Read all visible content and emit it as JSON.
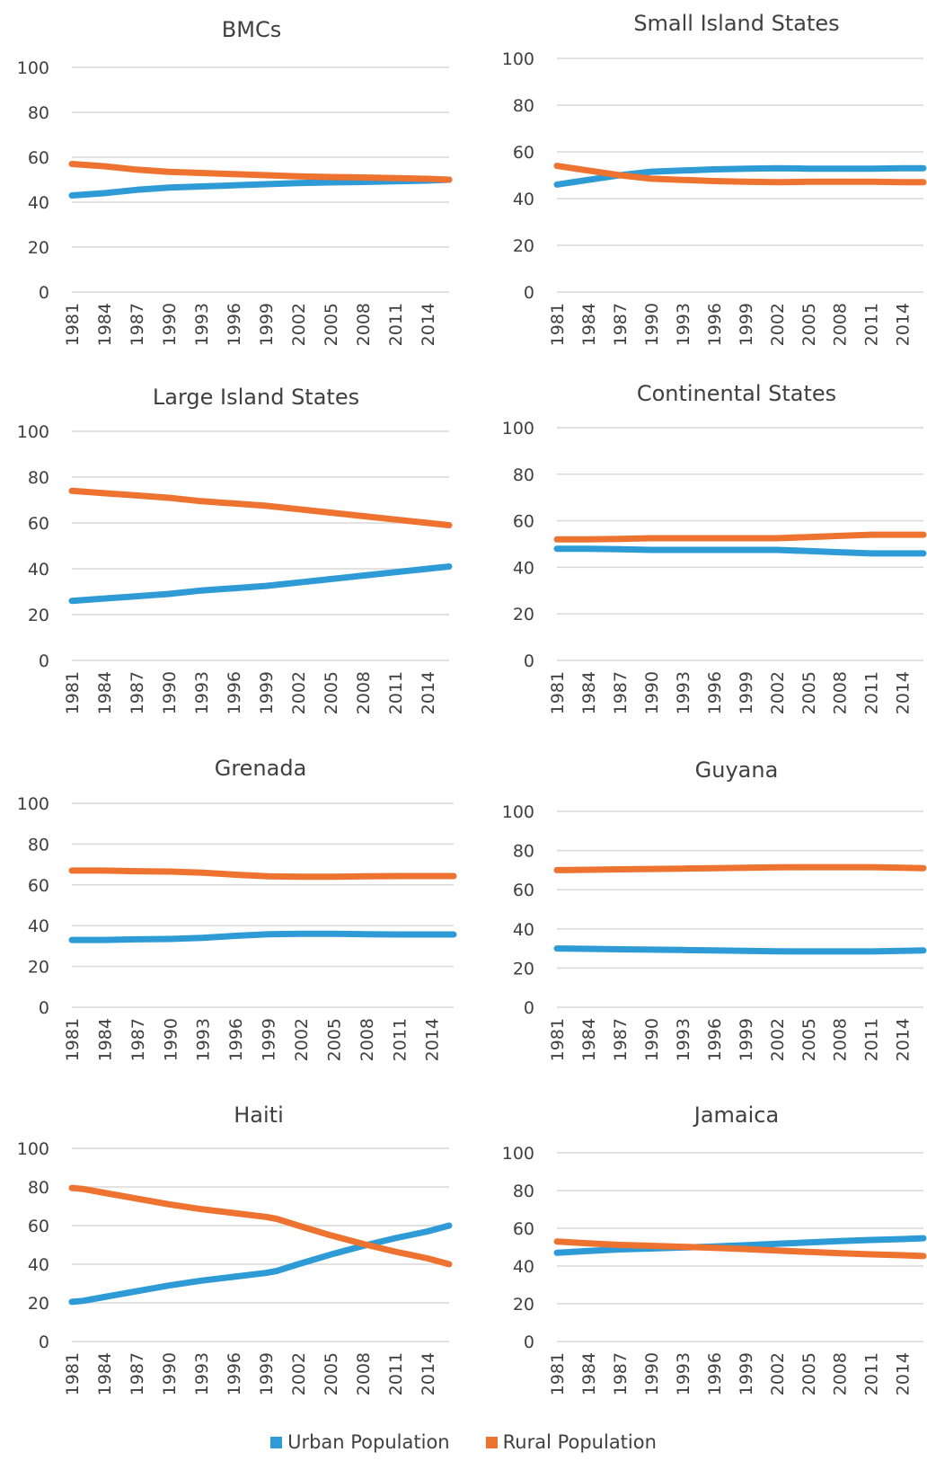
{
  "colors": {
    "urban": "#2e9bd6",
    "rural": "#ee7230",
    "grid": "#d9d9d9",
    "text": "#404040"
  },
  "legend": {
    "urban": "Urban Population",
    "rural": "Rural Population"
  },
  "chart_data": [
    {
      "type": "line",
      "title": "BMCs",
      "x": [
        1981,
        1984,
        1987,
        1990,
        1993,
        1996,
        1999,
        2002,
        2005,
        2008,
        2011,
        2014
      ],
      "x_end": 2016,
      "ylim": [
        0,
        100
      ],
      "yticks": [
        0,
        20,
        40,
        60,
        80,
        100
      ],
      "grid": true,
      "legend": "bottom",
      "series": [
        {
          "name": "Urban Population",
          "x": [
            1981,
            1984,
            1987,
            1990,
            1993,
            1996,
            1999,
            2002,
            2005,
            2008,
            2011,
            2014,
            2016
          ],
          "values": [
            43,
            44,
            45.5,
            46.5,
            47,
            47.5,
            48,
            48.5,
            48.8,
            49,
            49.3,
            49.6,
            50
          ]
        },
        {
          "name": "Rural Population",
          "x": [
            1981,
            1984,
            1987,
            1990,
            1993,
            1996,
            1999,
            2002,
            2005,
            2008,
            2011,
            2014,
            2016
          ],
          "values": [
            57,
            56,
            54.5,
            53.5,
            53,
            52.5,
            52,
            51.5,
            51.2,
            51,
            50.7,
            50.4,
            50
          ]
        }
      ]
    },
    {
      "type": "line",
      "title": "Small Island States",
      "x": [
        1981,
        1984,
        1987,
        1990,
        1993,
        1996,
        1999,
        2002,
        2005,
        2008,
        2011,
        2014
      ],
      "x_end": 2016,
      "ylim": [
        0,
        100
      ],
      "yticks": [
        0,
        20,
        40,
        60,
        80,
        100
      ],
      "grid": true,
      "legend": "bottom",
      "series": [
        {
          "name": "Urban Population",
          "x": [
            1981,
            1984,
            1987,
            1990,
            1993,
            1996,
            1999,
            2002,
            2005,
            2008,
            2011,
            2014,
            2016
          ],
          "values": [
            46,
            48,
            50,
            51.5,
            52,
            52.5,
            52.8,
            53,
            52.8,
            52.8,
            52.8,
            53,
            53
          ]
        },
        {
          "name": "Rural Population",
          "x": [
            1981,
            1984,
            1987,
            1990,
            1993,
            1996,
            1999,
            2002,
            2005,
            2008,
            2011,
            2014,
            2016
          ],
          "values": [
            54,
            52,
            50,
            48.5,
            48,
            47.5,
            47.2,
            47,
            47.2,
            47.2,
            47.2,
            47,
            47
          ]
        }
      ]
    },
    {
      "type": "line",
      "title": "Large Island States",
      "x": [
        1981,
        1984,
        1987,
        1990,
        1993,
        1996,
        1999,
        2002,
        2005,
        2008,
        2011,
        2014
      ],
      "x_end": 2016,
      "ylim": [
        0,
        100
      ],
      "yticks": [
        0,
        20,
        40,
        60,
        80,
        100
      ],
      "grid": true,
      "legend": "bottom",
      "series": [
        {
          "name": "Urban Population",
          "x": [
            1981,
            1984,
            1987,
            1990,
            1993,
            1996,
            1999,
            2002,
            2005,
            2008,
            2011,
            2014,
            2016
          ],
          "values": [
            26,
            27,
            28,
            29,
            30.5,
            31.5,
            32.5,
            34,
            35.5,
            37,
            38.5,
            40,
            41
          ]
        },
        {
          "name": "Rural Population",
          "x": [
            1981,
            1984,
            1987,
            1990,
            1993,
            1996,
            1999,
            2002,
            2005,
            2008,
            2011,
            2014,
            2016
          ],
          "values": [
            74,
            73,
            72,
            71,
            69.5,
            68.5,
            67.5,
            66,
            64.5,
            63,
            61.5,
            60,
            59
          ]
        }
      ]
    },
    {
      "type": "line",
      "title": "Continental States",
      "x": [
        1981,
        1984,
        1987,
        1990,
        1993,
        1996,
        1999,
        2002,
        2005,
        2008,
        2011,
        2014
      ],
      "x_end": 2016,
      "ylim": [
        0,
        100
      ],
      "yticks": [
        0,
        20,
        40,
        60,
        80,
        100
      ],
      "grid": true,
      "legend": "bottom",
      "series": [
        {
          "name": "Urban Population",
          "x": [
            1981,
            1984,
            1987,
            1990,
            1993,
            1996,
            1999,
            2002,
            2005,
            2008,
            2011,
            2014,
            2016
          ],
          "values": [
            48,
            48,
            47.8,
            47.5,
            47.5,
            47.5,
            47.5,
            47.5,
            47,
            46.5,
            46,
            46,
            46
          ]
        },
        {
          "name": "Rural Population",
          "x": [
            1981,
            1984,
            1987,
            1990,
            1993,
            1996,
            1999,
            2002,
            2005,
            2008,
            2011,
            2014,
            2016
          ],
          "values": [
            52,
            52,
            52.2,
            52.5,
            52.5,
            52.5,
            52.5,
            52.5,
            53,
            53.5,
            54,
            54,
            54
          ]
        }
      ]
    },
    {
      "type": "line",
      "title": "Grenada",
      "x": [
        1981,
        1984,
        1987,
        1990,
        1993,
        1996,
        1999,
        2002,
        2005,
        2008,
        2011,
        2014
      ],
      "x_end": 2016,
      "ylim": [
        0,
        100
      ],
      "yticks": [
        0,
        20,
        40,
        60,
        80,
        100
      ],
      "grid": true,
      "legend": "bottom",
      "series": [
        {
          "name": "Urban Population",
          "x": [
            1981,
            1984,
            1987,
            1990,
            1993,
            1996,
            1999,
            2002,
            2005,
            2008,
            2011,
            2014,
            2016
          ],
          "values": [
            33,
            33,
            33.3,
            33.5,
            34,
            35,
            35.8,
            36,
            36,
            35.8,
            35.7,
            35.7,
            35.7
          ]
        },
        {
          "name": "Rural Population",
          "x": [
            1981,
            1984,
            1987,
            1990,
            1993,
            1996,
            1999,
            2002,
            2005,
            2008,
            2011,
            2014,
            2016
          ],
          "values": [
            67,
            67,
            66.7,
            66.5,
            66,
            65,
            64.2,
            64,
            64,
            64.2,
            64.3,
            64.3,
            64.3
          ]
        }
      ]
    },
    {
      "type": "line",
      "title": "Guyana",
      "x": [
        1981,
        1984,
        1987,
        1990,
        1993,
        1996,
        1999,
        2002,
        2005,
        2008,
        2011,
        2014
      ],
      "x_end": 2016,
      "ylim": [
        0,
        100
      ],
      "yticks": [
        0,
        20,
        40,
        60,
        80,
        100
      ],
      "grid": true,
      "legend": "bottom",
      "series": [
        {
          "name": "Urban Population",
          "x": [
            1981,
            1984,
            1987,
            1990,
            1993,
            1996,
            1999,
            2002,
            2005,
            2008,
            2011,
            2014,
            2016
          ],
          "values": [
            30,
            29.8,
            29.6,
            29.4,
            29.2,
            29,
            28.8,
            28.6,
            28.5,
            28.5,
            28.5,
            28.8,
            29
          ]
        },
        {
          "name": "Rural Population",
          "x": [
            1981,
            1984,
            1987,
            1990,
            1993,
            1996,
            1999,
            2002,
            2005,
            2008,
            2011,
            2014,
            2016
          ],
          "values": [
            70,
            70.2,
            70.4,
            70.6,
            70.8,
            71,
            71.2,
            71.4,
            71.5,
            71.5,
            71.5,
            71.2,
            71
          ]
        }
      ]
    },
    {
      "type": "line",
      "title": "Haiti",
      "x": [
        1981,
        1984,
        1987,
        1990,
        1993,
        1996,
        1999,
        2002,
        2005,
        2008,
        2011,
        2014
      ],
      "x_end": 2016,
      "ylim": [
        0,
        100
      ],
      "yticks": [
        0,
        20,
        40,
        60,
        80,
        100
      ],
      "grid": true,
      "legend": "bottom",
      "series": [
        {
          "name": "Urban Population",
          "x": [
            1981,
            1982,
            1984,
            1987,
            1990,
            1993,
            1996,
            1999,
            2000,
            2002,
            2005,
            2008,
            2011,
            2014,
            2016
          ],
          "values": [
            20.5,
            21,
            23,
            26,
            29,
            31.5,
            33.5,
            35.5,
            36.5,
            40,
            45,
            49.5,
            53.5,
            57,
            60
          ]
        },
        {
          "name": "Rural Population",
          "x": [
            1981,
            1982,
            1984,
            1987,
            1990,
            1993,
            1996,
            1999,
            2000,
            2002,
            2005,
            2008,
            2011,
            2014,
            2016
          ],
          "values": [
            79.5,
            79,
            77,
            74,
            71,
            68.5,
            66.5,
            64.5,
            63.5,
            60,
            55,
            50.5,
            46.5,
            43,
            40
          ]
        }
      ]
    },
    {
      "type": "line",
      "title": "Jamaica",
      "x": [
        1981,
        1984,
        1987,
        1990,
        1993,
        1996,
        1999,
        2002,
        2005,
        2008,
        2011,
        2014
      ],
      "x_end": 2016,
      "ylim": [
        0,
        100
      ],
      "yticks": [
        0,
        20,
        40,
        60,
        80,
        100
      ],
      "grid": true,
      "legend": "bottom",
      "series": [
        {
          "name": "Urban Population",
          "x": [
            1981,
            1984,
            1987,
            1990,
            1993,
            1996,
            1999,
            2002,
            2005,
            2008,
            2011,
            2014,
            2016
          ],
          "values": [
            47,
            48,
            48.8,
            49.3,
            49.8,
            50.4,
            51,
            51.8,
            52.5,
            53.2,
            53.8,
            54.3,
            54.7
          ]
        },
        {
          "name": "Rural Population",
          "x": [
            1981,
            1984,
            1987,
            1990,
            1993,
            1996,
            1999,
            2002,
            2005,
            2008,
            2011,
            2014,
            2016
          ],
          "values": [
            53,
            52,
            51.2,
            50.7,
            50.2,
            49.6,
            49,
            48.2,
            47.5,
            46.8,
            46.2,
            45.7,
            45.3
          ]
        }
      ]
    }
  ]
}
